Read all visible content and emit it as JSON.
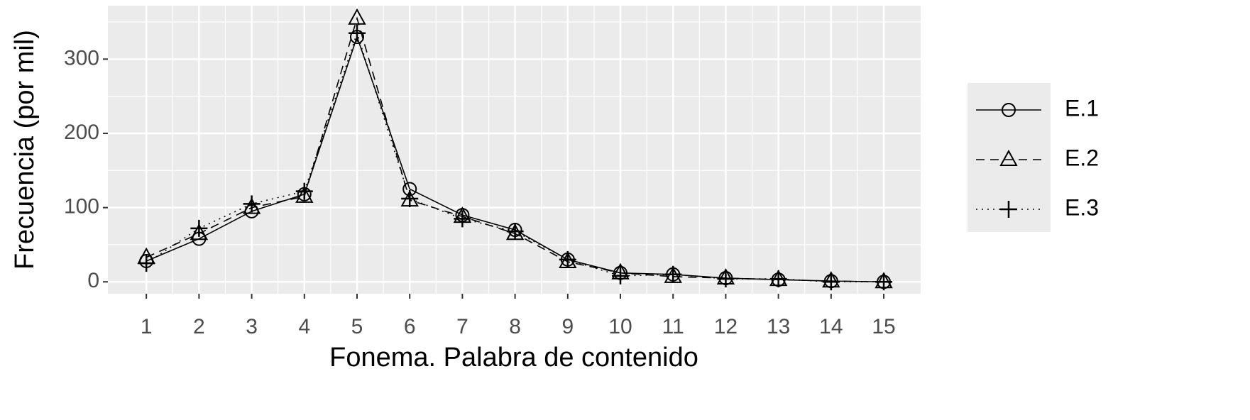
{
  "chart_data": {
    "type": "line",
    "x_label": "Fonema. Palabra de contenido",
    "y_label": "Frecuencia (por mil)",
    "x": [
      1,
      2,
      3,
      4,
      5,
      6,
      7,
      8,
      9,
      10,
      11,
      12,
      13,
      14,
      15
    ],
    "series": [
      {
        "name": "E.1",
        "color": "#000000",
        "linetype": "solid",
        "shape": "circle",
        "values": [
          28,
          58,
          95,
          118,
          330,
          125,
          90,
          70,
          30,
          12,
          10,
          5,
          3,
          1,
          0
        ]
      },
      {
        "name": "E.2",
        "color": "#000000",
        "linetype": "dashed",
        "shape": "triangle",
        "values": [
          33,
          65,
          100,
          115,
          355,
          110,
          88,
          65,
          27,
          12,
          7,
          5,
          3,
          1,
          0
        ]
      },
      {
        "name": "E.3",
        "color": "#000000",
        "linetype": "dotted",
        "shape": "plus",
        "values": [
          25,
          72,
          105,
          122,
          335,
          112,
          85,
          68,
          30,
          8,
          10,
          4,
          4,
          0,
          0
        ]
      }
    ],
    "xlim": [
      0.27,
      15.7
    ],
    "xticks": [
      1,
      2,
      3,
      4,
      5,
      6,
      7,
      8,
      9,
      10,
      11,
      12,
      13,
      14,
      15
    ],
    "ylim": [
      -16,
      372
    ],
    "yticks": [
      0,
      100,
      200,
      300
    ],
    "grid": true,
    "legend": "right"
  }
}
